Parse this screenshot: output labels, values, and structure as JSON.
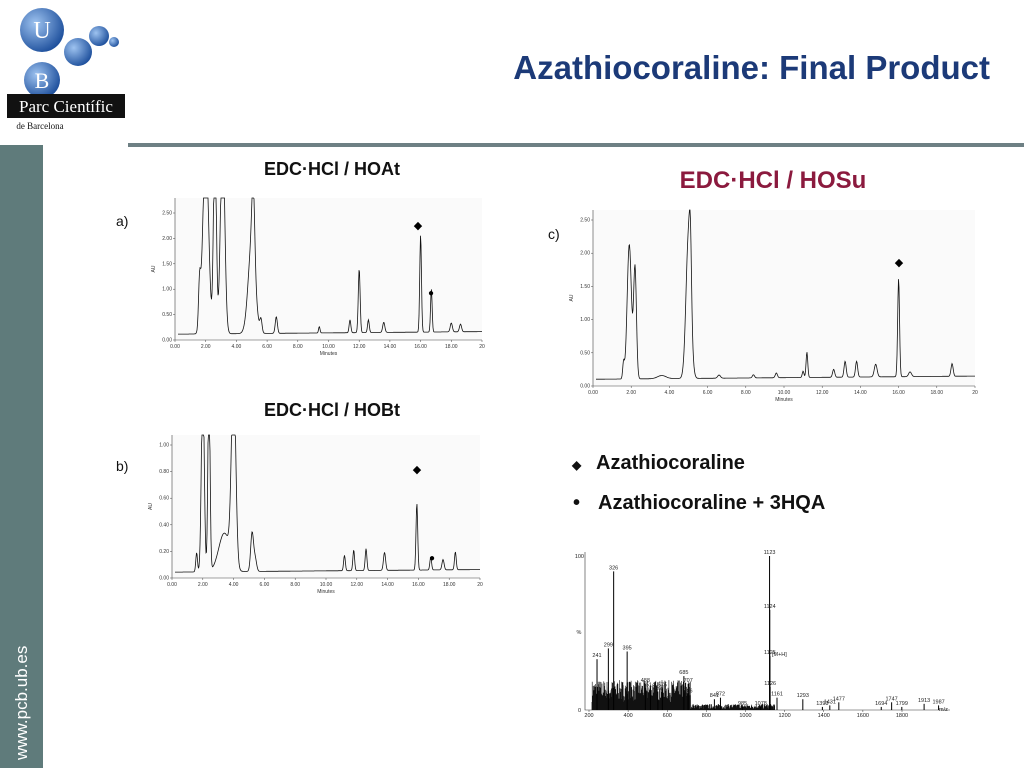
{
  "header": {
    "title": "Azathiocoraline: Final Product",
    "logo": {
      "letter_top": "U",
      "letter_bottom": "B",
      "name": "Parc Científic",
      "place": "de Barcelona"
    }
  },
  "sidebar": {
    "url": "www.pcb.ub.es"
  },
  "panels": [
    {
      "label": "a)",
      "heading": "EDC·HCl / HOAt",
      "y_axis_label": "AU",
      "x_axis_label": "Minutes",
      "yticks": [
        "0.00",
        "0.50",
        "1.00",
        "1.50",
        "2.00",
        "2.50"
      ],
      "xticks": [
        "0.00",
        "2.00",
        "4.00",
        "6.00",
        "8.00",
        "10.00",
        "12.00",
        "14.00",
        "16.00",
        "18.00",
        "20"
      ]
    },
    {
      "label": "b)",
      "heading": "EDC·HCl / HOBt",
      "y_axis_label": "AU",
      "x_axis_label": "Minutes",
      "yticks": [
        "0.00",
        "0.20",
        "0.40",
        "0.60",
        "0.80",
        "1.00"
      ],
      "xticks": [
        "0.00",
        "2.00",
        "4.00",
        "6.00",
        "8.00",
        "10.00",
        "12.00",
        "14.00",
        "16.00",
        "18.00",
        "20"
      ]
    },
    {
      "label": "c)",
      "heading": "EDC·HCl / HOSu",
      "y_axis_label": "AU",
      "x_axis_label": "Minutes",
      "yticks": [
        "0.00",
        "0.50",
        "1.00",
        "1.50",
        "2.00",
        "2.50"
      ],
      "xticks": [
        "0.00",
        "2.00",
        "4.00",
        "6.00",
        "8.00",
        "10.00",
        "12.00",
        "14.00",
        "16.00",
        "18.00",
        "20"
      ]
    }
  ],
  "legend": [
    {
      "symbol": "◆",
      "text": "Azathiocoraline"
    },
    {
      "symbol": "•",
      "text": "Azathiocoraline + 3HQA"
    }
  ],
  "mass_spectrum": {
    "y_axis_label": "%",
    "x_axis_label": "m/z",
    "yticks": [
      "0",
      "100"
    ],
    "xticks": [
      "200",
      "400",
      "600",
      "800",
      "1000",
      "1200",
      "1400",
      "1600",
      "1800"
    ],
    "peak_labels": [
      "1123",
      "326",
      "1124",
      "299",
      "395",
      "241",
      "1125",
      "488",
      "685",
      "707",
      "514",
      "575",
      "552",
      "706",
      "841",
      "872",
      "1126",
      "985",
      "1078",
      "1161",
      "1293",
      "1393",
      "1431",
      "1477",
      "1694",
      "1747",
      "1799",
      "1913",
      "1987"
    ],
    "annotation": "[M+H]"
  }
}
